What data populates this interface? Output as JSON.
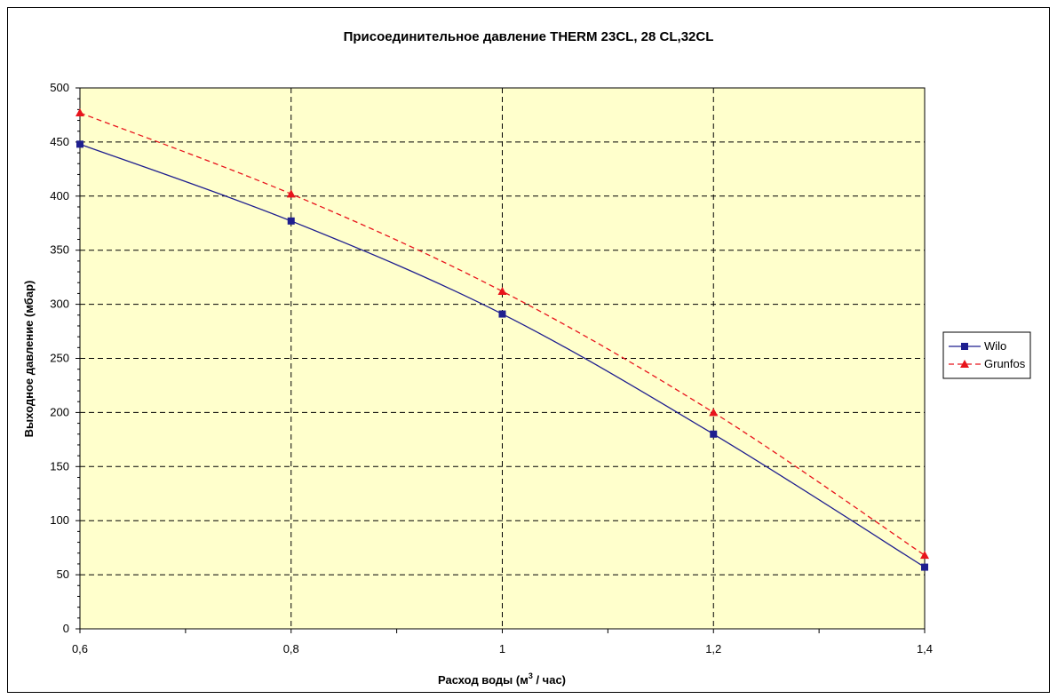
{
  "chart_data": {
    "type": "line",
    "title": "Присоединительное давление THERM 23CL, 28 CL,32CL",
    "xlabel_main": "Расход воды (м",
    "xlabel_sup": "3",
    "xlabel_tail": " / час)",
    "ylabel": "Выходное давление (мбар)",
    "x": [
      0.6,
      0.8,
      1.0,
      1.2,
      1.4
    ],
    "x_tick_labels": [
      "0,6",
      "0,8",
      "1",
      "1,2",
      "1,4"
    ],
    "xlim": [
      0.6,
      1.4
    ],
    "ylim": [
      0,
      500
    ],
    "y_ticks": [
      0,
      50,
      100,
      150,
      200,
      250,
      300,
      350,
      400,
      450,
      500
    ],
    "grid": true,
    "plot_background": "#FFFFCC",
    "legend_position": "right",
    "series": [
      {
        "name": "Wilo",
        "values": [
          448,
          377,
          291,
          180,
          57
        ],
        "color": "#1F1F8F",
        "marker": "square",
        "dash": "solid"
      },
      {
        "name": "Grunfos",
        "values": [
          477,
          402,
          312,
          200,
          68
        ],
        "color": "#E8141C",
        "marker": "triangle",
        "dash": "dashed"
      }
    ]
  }
}
